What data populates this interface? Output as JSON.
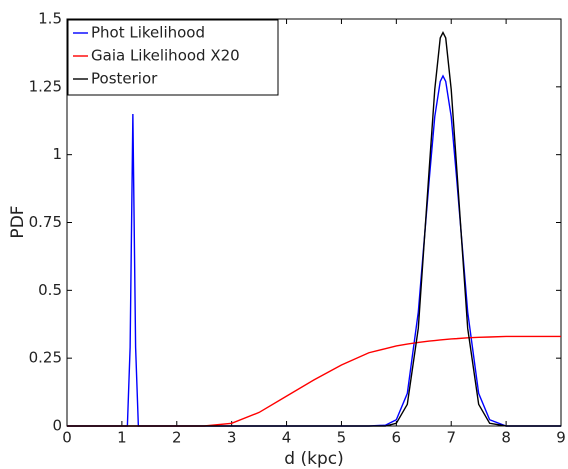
{
  "chart_data": {
    "type": "line",
    "x_label": "d (kpc)",
    "y_label": "PDF",
    "x": [
      0,
      0.5,
      1.0,
      1.1,
      1.15,
      1.2,
      1.25,
      1.3,
      1.4,
      1.5,
      2.0,
      2.5,
      3.0,
      3.5,
      4.0,
      4.5,
      5.0,
      5.5,
      5.8,
      6.0,
      6.2,
      6.4,
      6.6,
      6.7,
      6.8,
      6.85,
      6.9,
      7.0,
      7.1,
      7.3,
      7.5,
      7.7,
      8.0,
      8.5,
      9.0
    ],
    "series": [
      {
        "name": "Phot Likelihood",
        "color": "#0000ff",
        "values": [
          0,
          0,
          0,
          0,
          0.29,
          1.15,
          0.29,
          0,
          0,
          0,
          0,
          0,
          0,
          0,
          0,
          0,
          0,
          0,
          0.003,
          0.023,
          0.12,
          0.42,
          0.91,
          1.14,
          1.27,
          1.29,
          1.27,
          1.14,
          0.91,
          0.42,
          0.12,
          0.023,
          0,
          0,
          0
        ]
      },
      {
        "name": "Gaia Likelihood X20",
        "color": "#ff0000",
        "values": [
          0,
          0,
          0,
          0,
          0,
          0,
          0,
          0,
          0,
          0,
          0,
          0,
          0.01,
          0.05,
          0.11,
          0.17,
          0.225,
          0.27,
          0.285,
          0.295,
          0.302,
          0.308,
          0.313,
          0.315,
          0.317,
          0.318,
          0.319,
          0.321,
          0.322,
          0.325,
          0.327,
          0.328,
          0.33,
          0.33,
          0.33
        ]
      },
      {
        "name": "Posterior",
        "color": "#000000",
        "values": [
          0,
          0,
          0,
          0,
          0,
          0,
          0,
          0,
          0,
          0,
          0,
          0,
          0,
          0,
          0,
          0,
          0,
          0,
          0,
          0.01,
          0.08,
          0.36,
          0.95,
          1.24,
          1.43,
          1.45,
          1.43,
          1.24,
          0.95,
          0.36,
          0.08,
          0.01,
          0,
          0,
          0
        ]
      }
    ],
    "xlim": [
      0,
      9
    ],
    "xticks": [
      0,
      1,
      2,
      3,
      4,
      5,
      6,
      7,
      8,
      9
    ],
    "ylim": [
      0,
      1.5
    ],
    "yticks": [
      0,
      0.25,
      0.5,
      0.75,
      1,
      1.25,
      1.5
    ],
    "legend": "upper-left"
  }
}
